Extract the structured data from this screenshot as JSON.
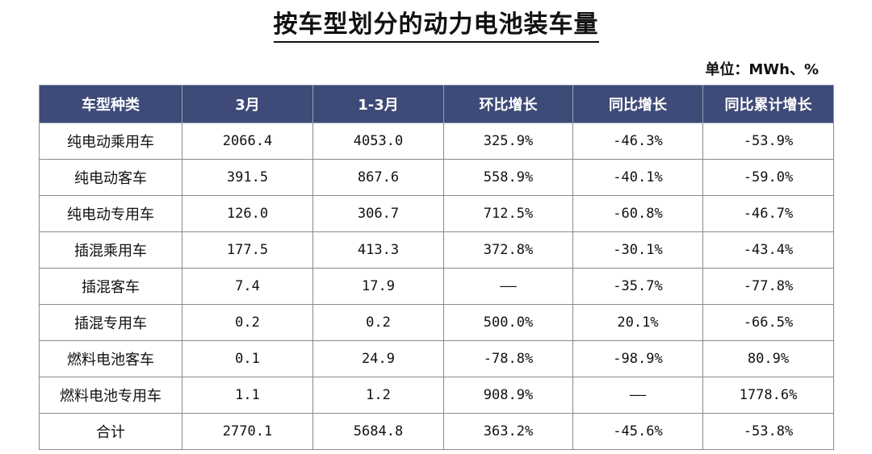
{
  "title": "按车型划分的动力电池装车量",
  "unit": "单位：MWh、%",
  "table": {
    "headers": [
      "车型种类",
      "3月",
      "1-3月",
      "环比增长",
      "同比增长",
      "同比累计增长"
    ],
    "rows": [
      [
        "纯电动乘用车",
        "2066.4",
        "4053.0",
        "325.9%",
        "-46.3%",
        "-53.9%"
      ],
      [
        "纯电动客车",
        "391.5",
        "867.6",
        "558.9%",
        "-40.1%",
        "-59.0%"
      ],
      [
        "纯电动专用车",
        "126.0",
        "306.7",
        "712.5%",
        "-60.8%",
        "-46.7%"
      ],
      [
        "插混乘用车",
        "177.5",
        "413.3",
        "372.8%",
        "-30.1%",
        "-43.4%"
      ],
      [
        "插混客车",
        "7.4",
        "17.9",
        "——",
        "-35.7%",
        "-77.8%"
      ],
      [
        "插混专用车",
        "0.2",
        "0.2",
        "500.0%",
        "20.1%",
        "-66.5%"
      ],
      [
        "燃料电池客车",
        "0.1",
        "24.9",
        "-78.8%",
        "-98.9%",
        "80.9%"
      ],
      [
        "燃料电池专用车",
        "1.1",
        "1.2",
        "908.9%",
        "——",
        "1778.6%"
      ],
      [
        "合计",
        "2770.1",
        "5684.8",
        "363.2%",
        "-45.6%",
        "-53.8%"
      ]
    ]
  }
}
